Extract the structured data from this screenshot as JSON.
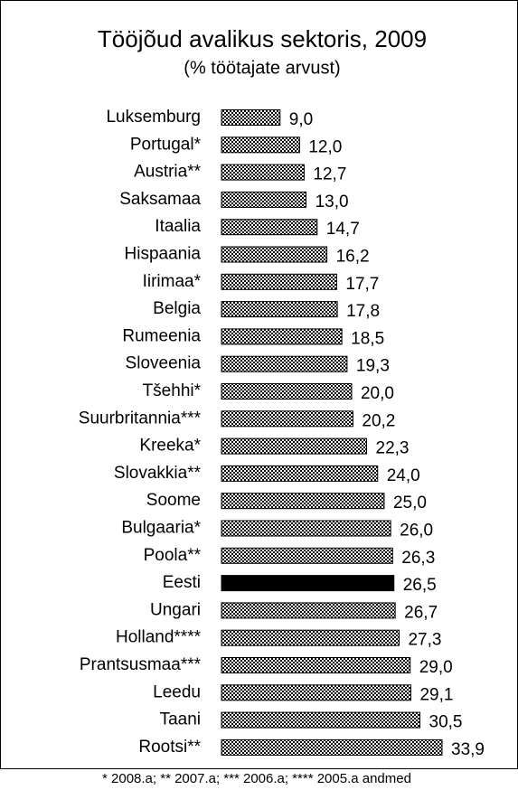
{
  "chart_data": {
    "type": "bar",
    "orientation": "horizontal",
    "title": "Tööjõud avalikus sektoris, 2009",
    "subtitle": "(% töötajate arvust)",
    "categories": [
      "Luksemburg",
      "Portugal*",
      "Austria**",
      "Saksamaa",
      "Itaalia",
      "Hispaania",
      "Iirimaa*",
      "Belgia",
      "Rumeenia",
      "Sloveenia",
      "Tšehhi*",
      "Suurbritannia***",
      "Kreeka*",
      "Slovakkia**",
      "Soome",
      "Bulgaaria*",
      "Poola**",
      "Eesti",
      "Ungari",
      "Holland****",
      "Prantsusmaa***",
      "Leedu",
      "Taani",
      "Rootsi**"
    ],
    "values": [
      9.0,
      12.0,
      12.7,
      13.0,
      14.7,
      16.2,
      17.7,
      17.8,
      18.5,
      19.3,
      20.0,
      20.2,
      22.3,
      24.0,
      25.0,
      26.0,
      26.3,
      26.5,
      26.7,
      27.3,
      29.0,
      29.1,
      30.5,
      33.9
    ],
    "value_labels": [
      "9,0",
      "12,0",
      "12,7",
      "13,0",
      "14,7",
      "16,2",
      "17,7",
      "17,8",
      "18,5",
      "19,3",
      "20,0",
      "20,2",
      "22,3",
      "24,0",
      "25,0",
      "26,0",
      "26,3",
      "26,5",
      "26,7",
      "27,3",
      "29,0",
      "29,1",
      "30,5",
      "33,9"
    ],
    "color": "#000000",
    "highlight": "Eesti",
    "highlight_color": "#000000",
    "footnote": "* 2008.a;  ** 2007.a;  *** 2006.a;  **** 2005.a   andmed"
  }
}
